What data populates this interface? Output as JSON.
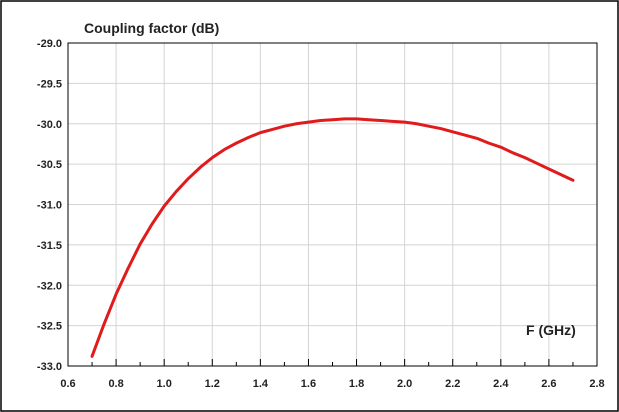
{
  "chart_data": {
    "type": "line",
    "title": "Coupling factor (dB)",
    "xlabel": "F (GHz)",
    "ylabel": "",
    "xlim": [
      0.6,
      2.8
    ],
    "ylim": [
      -33.0,
      -29.0
    ],
    "grid": true,
    "x_ticks": [
      "0.6",
      "0.8",
      "1.0",
      "1.2",
      "1.4",
      "1.6",
      "1.8",
      "2.0",
      "2.2",
      "2.4",
      "2.6",
      "2.8"
    ],
    "y_ticks": [
      "-29.0",
      "-29.5",
      "-30.0",
      "-30.5",
      "-31.0",
      "-31.5",
      "-32.0",
      "-32.5",
      "-33.0"
    ],
    "colors": {
      "series": "#e01b1b",
      "grid": "#d4d4d4",
      "frame": "#000000"
    },
    "series": [
      {
        "x": [
          0.7,
          0.75,
          0.8,
          0.85,
          0.9,
          0.95,
          1.0,
          1.05,
          1.1,
          1.15,
          1.2,
          1.25,
          1.3,
          1.35,
          1.4,
          1.45,
          1.5,
          1.55,
          1.6,
          1.65,
          1.7,
          1.75,
          1.8,
          1.85,
          1.9,
          1.95,
          2.0,
          2.05,
          2.1,
          2.15,
          2.2,
          2.25,
          2.3,
          2.35,
          2.4,
          2.45,
          2.5,
          2.55,
          2.6,
          2.65,
          2.7
        ],
        "values": [
          -32.88,
          -32.48,
          -32.11,
          -31.79,
          -31.49,
          -31.24,
          -31.02,
          -30.84,
          -30.68,
          -30.54,
          -30.42,
          -30.32,
          -30.24,
          -30.17,
          -30.11,
          -30.07,
          -30.03,
          -30.0,
          -29.98,
          -29.96,
          -29.95,
          -29.94,
          -29.94,
          -29.95,
          -29.96,
          -29.97,
          -29.98,
          -30.0,
          -30.03,
          -30.06,
          -30.1,
          -30.14,
          -30.18,
          -30.24,
          -30.29,
          -30.36,
          -30.42,
          -30.49,
          -30.56,
          -30.63,
          -30.7
        ]
      }
    ]
  }
}
